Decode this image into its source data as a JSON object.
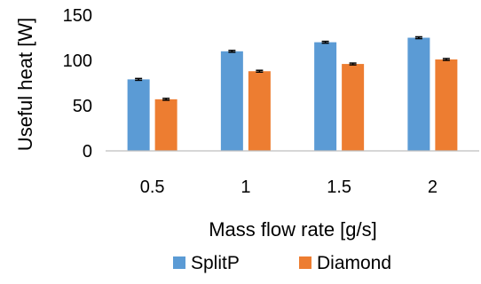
{
  "chart_data": {
    "type": "bar",
    "title": "",
    "xlabel": "Mass flow rate [g/s]",
    "ylabel": "Useful heat [W]",
    "categories": [
      "0.5",
      "1",
      "1.5",
      "2"
    ],
    "series": [
      {
        "name": "SplitP",
        "color": "#5B9BD5",
        "values": [
          79,
          110,
          120,
          125
        ],
        "error": [
          1,
          1,
          1,
          1
        ]
      },
      {
        "name": "Diamond",
        "color": "#ED7D31",
        "values": [
          57,
          88,
          96,
          101
        ],
        "error": [
          1,
          1,
          1,
          1
        ]
      }
    ],
    "ylim": [
      0,
      150
    ],
    "yticks": [
      "0",
      "50",
      "100",
      "150"
    ],
    "grid": false,
    "legend_position": "bottom"
  }
}
